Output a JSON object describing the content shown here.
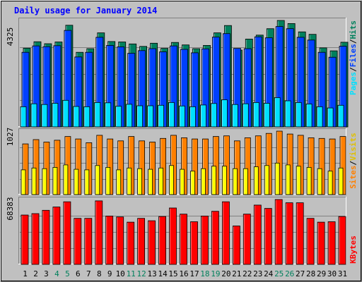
{
  "title": "Daily usage for January 2014",
  "colors": {
    "background": "#c0c0c0",
    "title": "#0000ff",
    "hits": "#00805c",
    "files": "#0040ff",
    "pages": "#00e0ff",
    "visits": "#ffff00",
    "sites": "#ff8000",
    "kbytes": "#ff0000",
    "weekend_label": "#00805c",
    "weekday_label": "#000000"
  },
  "chart_data": [
    {
      "type": "bar",
      "panel": "pages-files-hits",
      "ymax_label": "4325",
      "ylim": [
        0,
        4325
      ],
      "legend_labels": [
        "Pages",
        "/",
        "Files",
        "/",
        "Hits"
      ],
      "categories": [
        "1",
        "2",
        "3",
        "4",
        "5",
        "6",
        "7",
        "8",
        "9",
        "10",
        "11",
        "12",
        "13",
        "14",
        "15",
        "16",
        "17",
        "18",
        "19",
        "20",
        "21",
        "22",
        "23",
        "24",
        "25",
        "26",
        "27",
        "28",
        "29",
        "30",
        "31"
      ],
      "series": [
        {
          "name": "Hits",
          "values": [
            3200,
            3460,
            3380,
            3450,
            4130,
            3030,
            3180,
            3820,
            3470,
            3450,
            3370,
            3270,
            3400,
            3190,
            3430,
            3330,
            3180,
            3310,
            3820,
            4120,
            3120,
            3570,
            3730,
            3990,
            4325,
            4200,
            3860,
            3760,
            3210,
            3090,
            3440
          ]
        },
        {
          "name": "Files",
          "values": [
            3030,
            3290,
            3260,
            3300,
            3920,
            2840,
            3030,
            3640,
            3310,
            3250,
            2990,
            3100,
            3180,
            3050,
            3290,
            3150,
            3010,
            3170,
            3650,
            3790,
            3190,
            3180,
            3660,
            3620,
            4080,
            3990,
            3640,
            3530,
            3030,
            2830,
            3280
          ]
        },
        {
          "name": "Pages",
          "values": [
            820,
            940,
            910,
            960,
            1080,
            830,
            820,
            990,
            980,
            840,
            920,
            860,
            860,
            880,
            990,
            850,
            820,
            890,
            950,
            1100,
            910,
            940,
            990,
            960,
            1190,
            1060,
            990,
            930,
            820,
            770,
            880
          ]
        }
      ]
    },
    {
      "type": "bar",
      "panel": "sites-visits",
      "ymax_label": "1027",
      "ylim": [
        0,
        1027
      ],
      "legend_labels": [
        "Sites",
        "/",
        "Visits"
      ],
      "categories": [
        "1",
        "2",
        "3",
        "4",
        "5",
        "6",
        "7",
        "8",
        "9",
        "10",
        "11",
        "12",
        "13",
        "14",
        "15",
        "16",
        "17",
        "18",
        "19",
        "20",
        "21",
        "22",
        "23",
        "24",
        "25",
        "26",
        "27",
        "28",
        "29",
        "30",
        "31"
      ],
      "series": [
        {
          "name": "Sites",
          "values": [
            820,
            890,
            850,
            880,
            940,
            900,
            840,
            960,
            900,
            870,
            940,
            870,
            850,
            910,
            960,
            920,
            900,
            900,
            940,
            950,
            870,
            920,
            950,
            990,
            1027,
            980,
            960,
            920,
            910,
            900,
            940
          ]
        },
        {
          "name": "Visits",
          "values": [
            400,
            430,
            420,
            440,
            480,
            410,
            400,
            470,
            440,
            400,
            430,
            420,
            410,
            430,
            470,
            410,
            380,
            420,
            460,
            460,
            420,
            420,
            450,
            470,
            510,
            480,
            460,
            440,
            420,
            380,
            430
          ]
        }
      ]
    },
    {
      "type": "bar",
      "panel": "kbytes",
      "ymax_label": "68383",
      "ylim": [
        0,
        68383
      ],
      "legend_labels": [
        "KBytes"
      ],
      "categories": [
        "1",
        "2",
        "3",
        "4",
        "5",
        "6",
        "7",
        "8",
        "9",
        "10",
        "11",
        "12",
        "13",
        "14",
        "15",
        "16",
        "17",
        "18",
        "19",
        "20",
        "21",
        "22",
        "23",
        "24",
        "25",
        "26",
        "27",
        "28",
        "29",
        "30",
        "31"
      ],
      "series": [
        {
          "name": "KBytes",
          "values": [
            52000,
            53500,
            57000,
            60500,
            66000,
            48500,
            48500,
            67000,
            51000,
            50000,
            44500,
            48500,
            46000,
            50500,
            59500,
            53000,
            45000,
            51000,
            56000,
            66000,
            40500,
            53000,
            62500,
            59000,
            68383,
            65000,
            65000,
            48500,
            44500,
            45000,
            50500
          ]
        }
      ]
    }
  ]
}
